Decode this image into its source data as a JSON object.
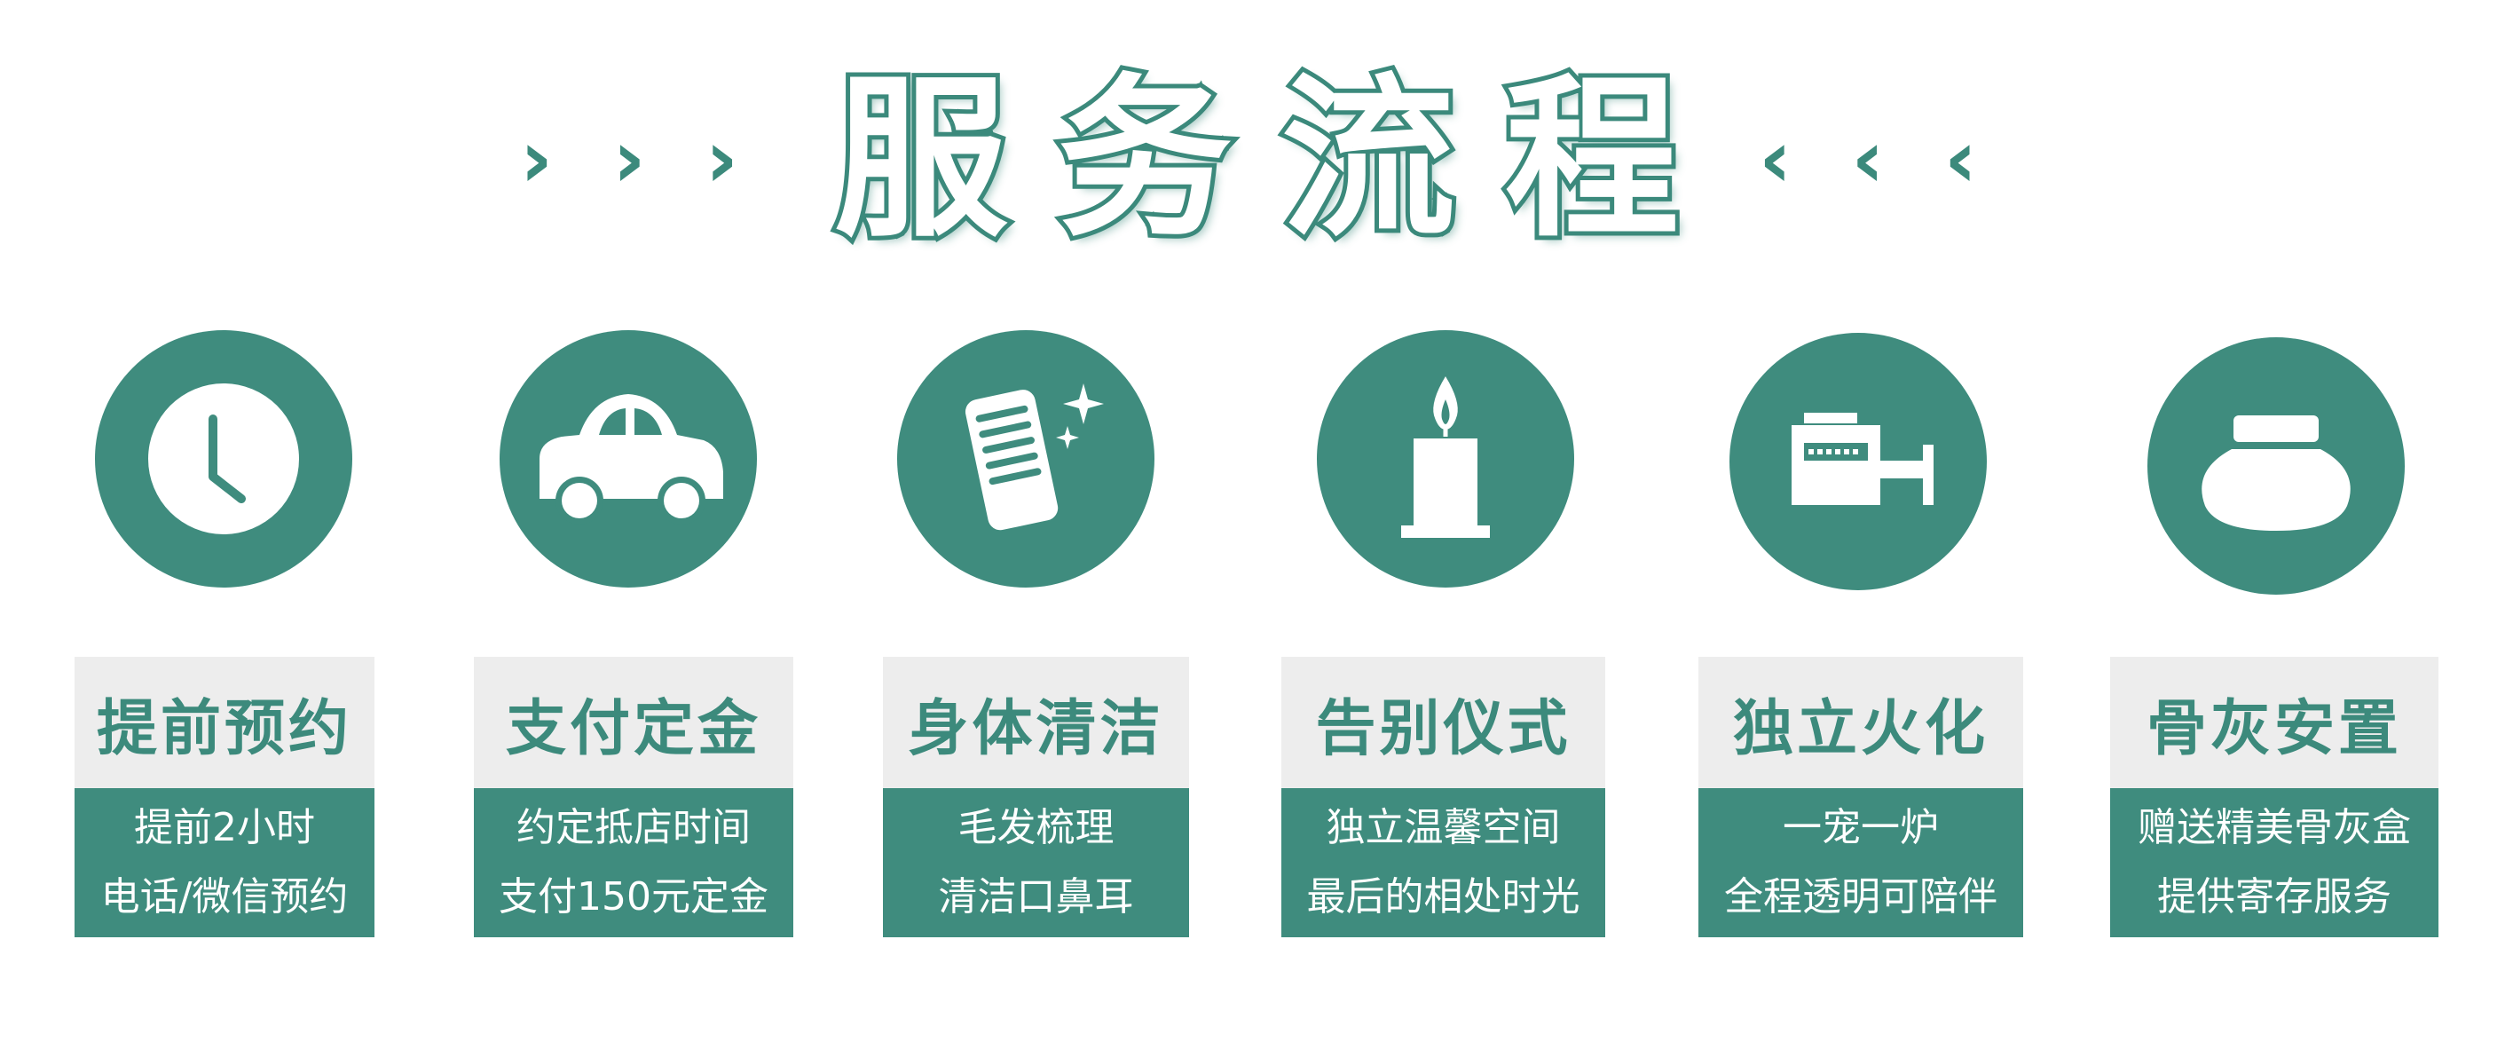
{
  "header": {
    "title": "服务流程",
    "left_arrows": "› › ›",
    "right_arrows": "‹ ‹ ‹"
  },
  "colors": {
    "accent": "#3f8c7e",
    "title_fill": "#ffffff",
    "card_title_bg": "#ededed"
  },
  "steps": [
    {
      "icon": "clock-icon",
      "title": "提前预约",
      "line1": "提前2小时",
      "line2": "电话/微信预约"
    },
    {
      "icon": "car-icon",
      "title": "支付定金",
      "line1": "约定抵店时间",
      "line2": "支付150元定金"
    },
    {
      "icon": "comb-icon",
      "title": "身体清洁",
      "line1": "毛发梳理",
      "line2": "清洁口鼻耳"
    },
    {
      "icon": "candle-icon",
      "title": "告别仪式",
      "line1": "独立温馨空间",
      "line2": "最后的相处时光"
    },
    {
      "icon": "cremation-furnace-icon",
      "title": "独立火化",
      "line1": "一宠一炉",
      "line2": "全程透明可陪伴"
    },
    {
      "icon": "urn-icon",
      "title": "骨灰安置",
      "line1": "赠送精美骨灰盒",
      "line2": "提供寄存服务"
    }
  ]
}
